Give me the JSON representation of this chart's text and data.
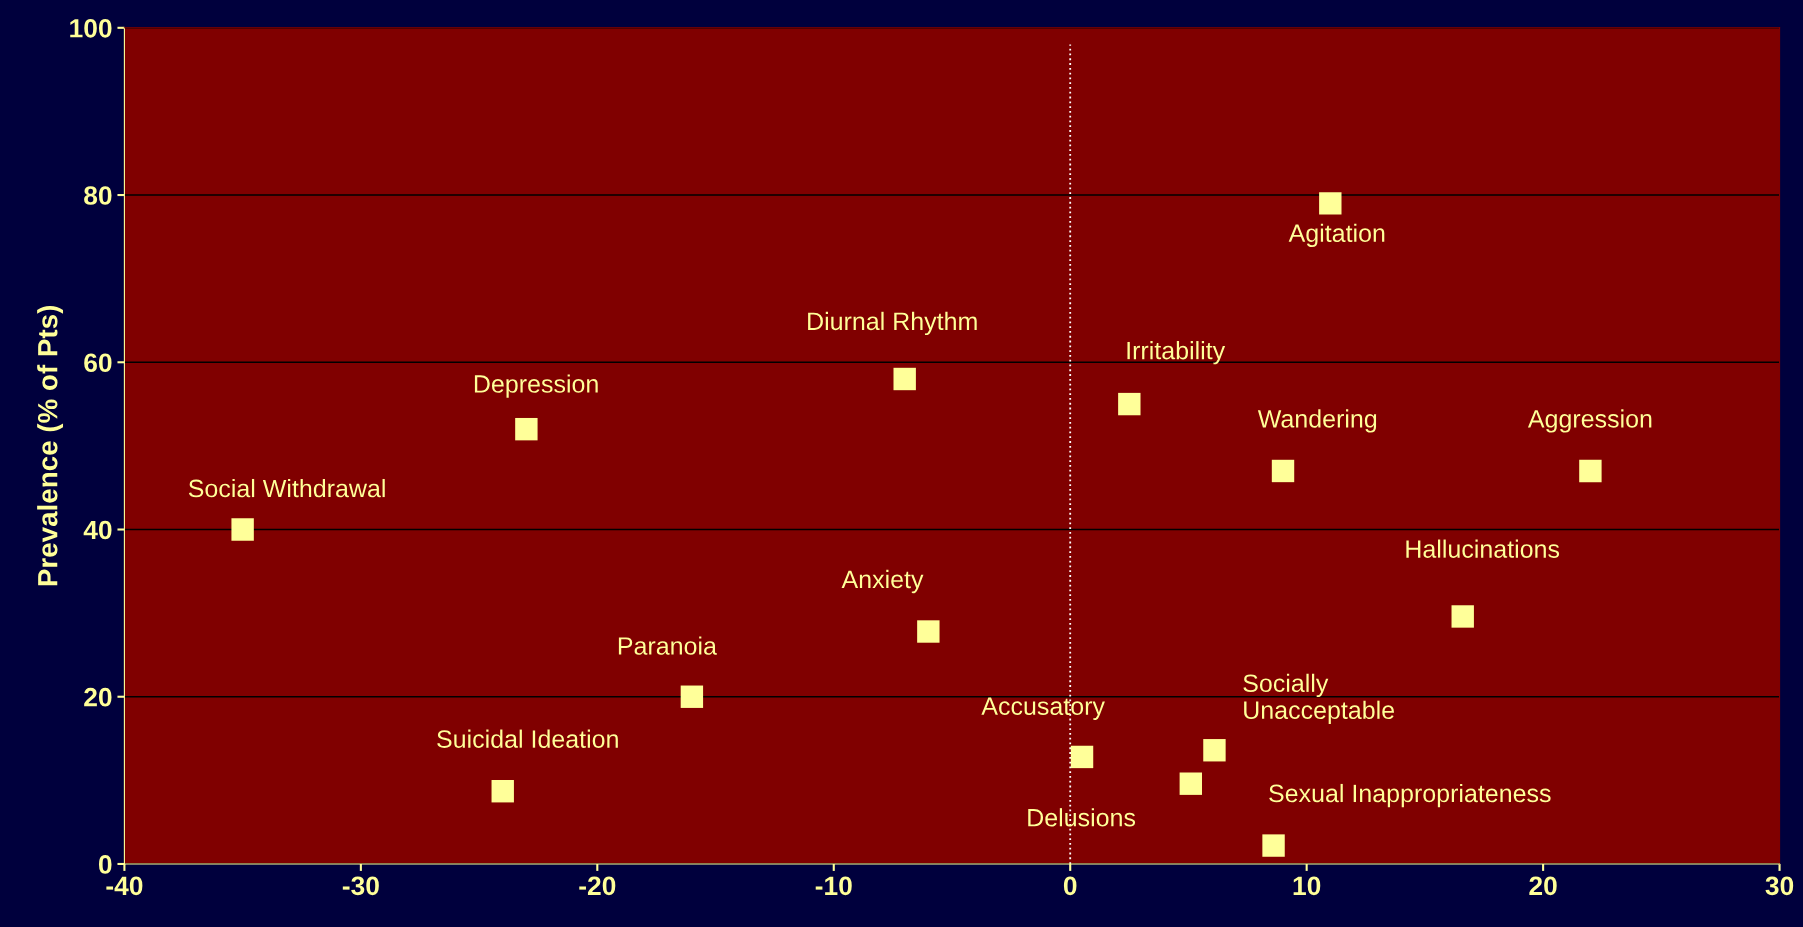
{
  "chart_data": {
    "type": "scatter",
    "ylabel": "Prevalence (% of Pts)",
    "x": [
      -35,
      -23,
      -7,
      2.5,
      11,
      9,
      22,
      16.6,
      -6,
      -16,
      -24,
      0.5,
      6.1,
      5.1,
      8.6
    ],
    "series": [
      {
        "color": "#ffff99",
        "values": [
          40,
          52,
          58,
          55,
          79,
          47,
          47,
          29.6,
          27.8,
          20,
          8.7,
          12.8,
          13.6,
          9.6,
          2.2
        ]
      }
    ],
    "annotations": [
      {
        "text": "Social Withdrawal",
        "x": -35,
        "y": 40
      },
      {
        "text": "Depression",
        "x": -23,
        "y": 52
      },
      {
        "text": "Diurnal Rhythm",
        "x": -7,
        "y": 58
      },
      {
        "text": "Irritability",
        "x": 2.5,
        "y": 55
      },
      {
        "text": "Agitation",
        "x": 11,
        "y": 79
      },
      {
        "text": "Wandering",
        "x": 9,
        "y": 47
      },
      {
        "text": "Aggression",
        "x": 22,
        "y": 47
      },
      {
        "text": "Hallucinations",
        "x": 16.6,
        "y": 29.6
      },
      {
        "text": "Anxiety",
        "x": -6,
        "y": 27.8
      },
      {
        "text": "Paranoia",
        "x": -16,
        "y": 20
      },
      {
        "text": "Suicidal Ideation",
        "x": -24,
        "y": 8.7
      },
      {
        "text": "Accusatory",
        "x": 0.5,
        "y": 12.8
      },
      {
        "text": "Socially\nUnacceptable",
        "x": 6.1,
        "y": 13.6
      },
      {
        "text": "Delusions",
        "x": 5.1,
        "y": 9.6
      },
      {
        "text": "Sexual Inappropriateness",
        "x": 8.6,
        "y": 2.2
      }
    ],
    "xlim": [
      -40,
      30
    ],
    "xticks": [
      -40,
      -30,
      -20,
      -10,
      0,
      10,
      20,
      30
    ],
    "ylim": [
      0,
      100
    ],
    "yticks": [
      0,
      20,
      40,
      60,
      80,
      100
    ],
    "grid": "y",
    "marker": "square",
    "ref_lines": [
      {
        "axis": "x",
        "value": 0,
        "color": "#ffffff",
        "line_style": "dotted"
      }
    ]
  }
}
